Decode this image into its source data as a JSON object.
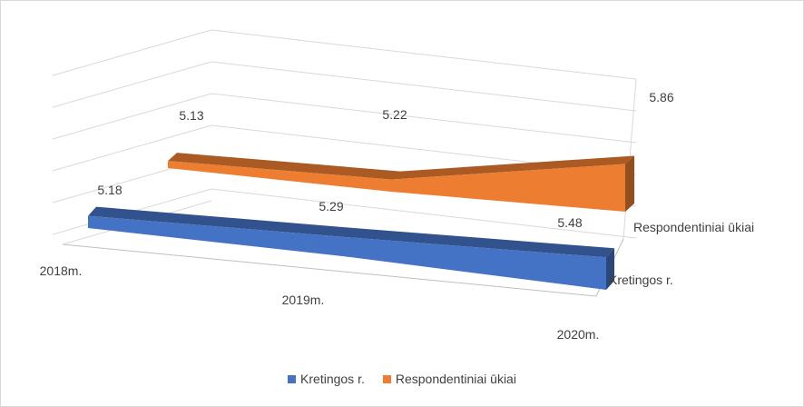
{
  "chart_data": {
    "type": "area",
    "three_d": true,
    "categories": [
      "2018m.",
      "2019m.",
      "2020m."
    ],
    "series": [
      {
        "name": "Kretingos r.",
        "values": [
          5.18,
          5.29,
          5.48
        ],
        "color": "#4472C4"
      },
      {
        "name": "Respondentiniai ūkiai",
        "values": [
          5.13,
          5.22,
          5.86
        ],
        "color": "#ED7D31"
      }
    ],
    "depth_labels": [
      "Kretingos r.",
      "Respondentiniai ūkiai"
    ],
    "title": "",
    "grid": true,
    "legend_position": "bottom"
  }
}
